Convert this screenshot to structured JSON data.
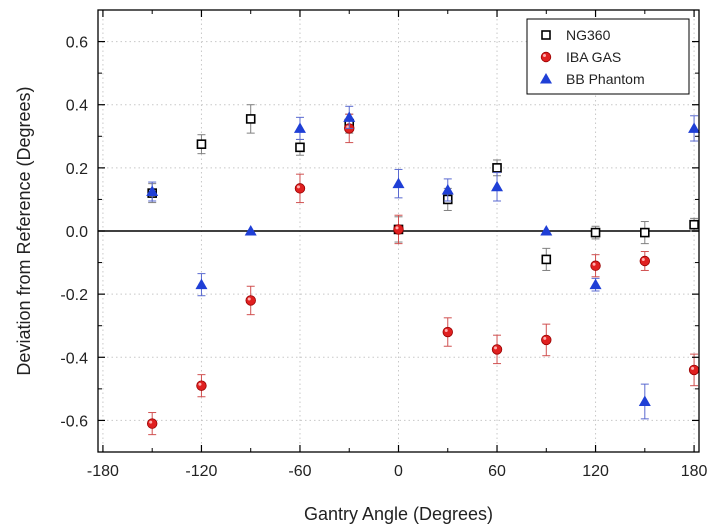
{
  "chart_data": {
    "type": "scatter",
    "xlabel": "Gantry Angle (Degrees)",
    "ylabel": "Deviation from Reference (Degrees)",
    "xlim": [
      -183,
      183
    ],
    "ylim": [
      -0.7,
      0.7
    ],
    "xticks": [
      -180,
      -120,
      -60,
      0,
      60,
      120,
      180
    ],
    "xtick_labels": [
      "-180",
      "-120",
      "-60",
      "0",
      "60",
      "120",
      "180"
    ],
    "yticks": [
      -0.6,
      -0.4,
      -0.2,
      0.0,
      0.2,
      0.4,
      0.6
    ],
    "ytick_labels": [
      "-0.6",
      "-0.4",
      "-0.2",
      "0.0",
      "0.2",
      "0.4",
      "0.6"
    ],
    "grid": "dotted",
    "zero_line": true,
    "legend_position": "top-right",
    "series": [
      {
        "name": "NG360",
        "marker": "open-square",
        "color": "#000000",
        "error_color": "#808080",
        "x": [
          -150,
          -120,
          -90,
          -60,
          -30,
          0,
          30,
          60,
          90,
          120,
          150,
          180
        ],
        "y": [
          0.12,
          0.275,
          0.355,
          0.265,
          0.34,
          0.005,
          0.1,
          0.2,
          -0.09,
          -0.005,
          -0.005,
          0.02
        ],
        "err": [
          0.03,
          0.03,
          0.045,
          0.025,
          0.03,
          0.04,
          0.035,
          0.025,
          0.035,
          0.02,
          0.035,
          0.02
        ]
      },
      {
        "name": "IBA GAS",
        "marker": "filled-circle",
        "color": "#e02020",
        "error_color": "#d05050",
        "x": [
          -150,
          -120,
          -90,
          -60,
          -30,
          0,
          30,
          60,
          90,
          120,
          150,
          180
        ],
        "y": [
          -0.61,
          -0.49,
          -0.22,
          0.135,
          0.325,
          0.005,
          -0.32,
          -0.375,
          -0.345,
          -0.11,
          -0.095,
          -0.44
        ],
        "err": [
          0.035,
          0.035,
          0.045,
          0.045,
          0.045,
          0.045,
          0.045,
          0.045,
          0.05,
          0.035,
          0.03,
          0.05
        ]
      },
      {
        "name": "BB Phantom",
        "marker": "filled-triangle",
        "color": "#1f3fd6",
        "error_color": "#5a6ad0",
        "x": [
          -150,
          -120,
          -90,
          -60,
          -30,
          0,
          30,
          60,
          90,
          120,
          150,
          180
        ],
        "y": [
          0.125,
          -0.17,
          0.0,
          0.325,
          0.36,
          0.15,
          0.13,
          0.14,
          0.0,
          -0.17,
          -0.54,
          0.325
        ],
        "err": [
          0.03,
          0.035,
          0.0,
          0.035,
          0.035,
          0.045,
          0.035,
          0.045,
          0.0,
          0.02,
          0.055,
          0.04
        ]
      }
    ]
  }
}
